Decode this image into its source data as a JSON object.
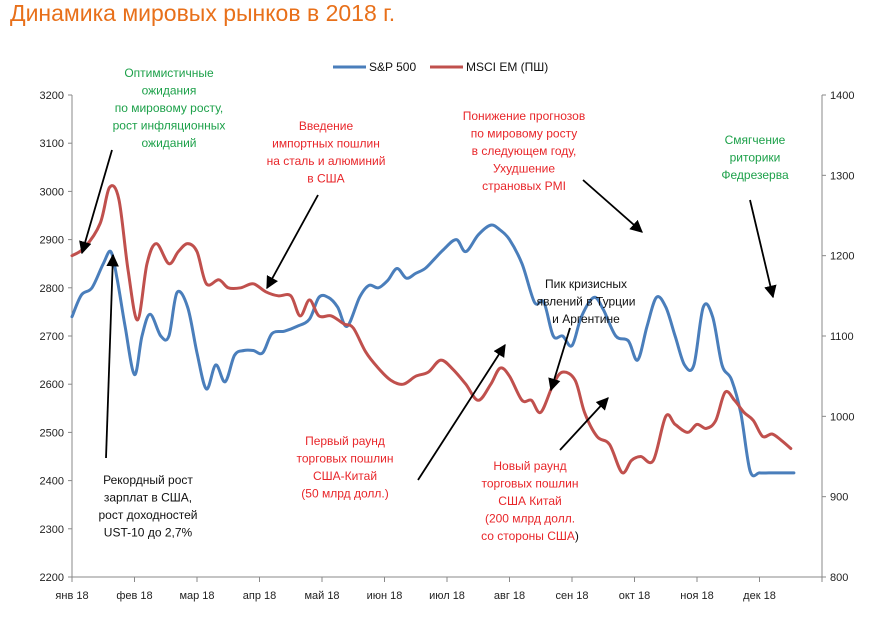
{
  "title": "Динамика мировых рынков в 2018 г.",
  "colors": {
    "title": "#E8701A",
    "sp500": "#4A7EBB",
    "msci": "#C0504D",
    "green": "#1DA14A",
    "red": "#E8262A",
    "black": "#111111",
    "axis": "#888888"
  },
  "chart_data": {
    "type": "line",
    "x_axis": {
      "categories": [
        "янв 18",
        "фев 18",
        "мар 18",
        "апр 18",
        "май 18",
        "июн 18",
        "июл 18",
        "авг 18",
        "сен 18",
        "окт 18",
        "ноя 18",
        "дек 18"
      ]
    },
    "y_left": {
      "min": 2200,
      "max": 3200,
      "step": 100,
      "ticks": [
        "2200",
        "2300",
        "2400",
        "2500",
        "2600",
        "2700",
        "2800",
        "2900",
        "3000",
        "3100",
        "3200"
      ]
    },
    "y_right": {
      "min": 800,
      "max": 1400,
      "step": 100,
      "ticks": [
        "800",
        "900",
        "1000",
        "1100",
        "1200",
        "1300",
        "1400"
      ]
    },
    "legend_position": "top-center",
    "series": [
      {
        "name": "S&P 500",
        "axis": "left",
        "color": "#4A7EBB",
        "x": [
          0.0,
          0.15,
          0.32,
          0.5,
          0.62,
          0.72,
          0.85,
          1.0,
          1.12,
          1.25,
          1.42,
          1.55,
          1.68,
          1.85,
          2.0,
          2.15,
          2.3,
          2.45,
          2.6,
          2.75,
          2.9,
          3.05,
          3.2,
          3.4,
          3.6,
          3.8,
          3.95,
          4.1,
          4.25,
          4.4,
          4.6,
          4.75,
          4.9,
          5.05,
          5.2,
          5.35,
          5.5,
          5.65,
          5.8,
          5.95,
          6.15,
          6.3,
          6.5,
          6.7,
          6.85,
          7.0,
          7.2,
          7.4,
          7.55,
          7.7,
          7.85,
          8.0,
          8.15,
          8.35,
          8.5,
          8.7,
          8.9,
          9.05,
          9.2,
          9.35,
          9.5,
          9.65,
          9.8,
          9.95,
          10.1,
          10.25,
          10.4,
          10.55,
          10.7,
          10.85,
          11.0,
          11.15,
          11.3,
          11.45,
          11.55
        ],
        "y": [
          2740,
          2785,
          2800,
          2850,
          2875,
          2820,
          2720,
          2620,
          2700,
          2745,
          2700,
          2700,
          2790,
          2760,
          2665,
          2590,
          2640,
          2605,
          2660,
          2670,
          2670,
          2665,
          2705,
          2710,
          2720,
          2735,
          2780,
          2780,
          2760,
          2720,
          2780,
          2805,
          2800,
          2815,
          2840,
          2820,
          2830,
          2840,
          2860,
          2880,
          2900,
          2875,
          2910,
          2930,
          2920,
          2900,
          2850,
          2770,
          2770,
          2700,
          2700,
          2680,
          2740,
          2780,
          2755,
          2700,
          2690,
          2650,
          2720,
          2780,
          2760,
          2700,
          2640,
          2640,
          2760,
          2740,
          2640,
          2610,
          2540,
          2420,
          2416,
          2416,
          2416,
          2416,
          2416
        ]
      },
      {
        "name": "MSCI EM (ПШ)",
        "axis": "right",
        "color": "#C0504D",
        "x": [
          0.0,
          0.2,
          0.45,
          0.6,
          0.75,
          0.9,
          1.05,
          1.2,
          1.35,
          1.55,
          1.7,
          1.85,
          2.0,
          2.15,
          2.35,
          2.5,
          2.7,
          2.9,
          3.1,
          3.3,
          3.5,
          3.65,
          3.8,
          3.95,
          4.15,
          4.35,
          4.5,
          4.7,
          4.9,
          5.1,
          5.3,
          5.5,
          5.7,
          5.9,
          6.1,
          6.3,
          6.5,
          6.7,
          6.85,
          7.0,
          7.2,
          7.35,
          7.5,
          7.7,
          7.85,
          8.05,
          8.2,
          8.4,
          8.6,
          8.8,
          8.95,
          9.1,
          9.3,
          9.5,
          9.65,
          9.85,
          10.0,
          10.15,
          10.3,
          10.45,
          10.6,
          10.75,
          10.9,
          11.05,
          11.2,
          11.35,
          11.5
        ],
        "y": [
          1200,
          1210,
          1240,
          1285,
          1270,
          1180,
          1120,
          1190,
          1215,
          1190,
          1205,
          1215,
          1205,
          1165,
          1170,
          1160,
          1160,
          1165,
          1155,
          1150,
          1150,
          1125,
          1145,
          1125,
          1125,
          1115,
          1110,
          1080,
          1060,
          1045,
          1040,
          1050,
          1055,
          1070,
          1058,
          1040,
          1020,
          1040,
          1060,
          1050,
          1020,
          1020,
          1005,
          1040,
          1055,
          1045,
          1005,
          975,
          965,
          930,
          945,
          950,
          945,
          1000,
          990,
          980,
          990,
          985,
          995,
          1030,
          1020,
          1005,
          995,
          975,
          978,
          970,
          960
        ]
      }
    ]
  },
  "annotations": [
    {
      "id": "optimistic",
      "lines": [
        "Оптимистичные",
        "ожидания",
        "по мировому росту,",
        "рост инфляционных",
        "ожиданий"
      ],
      "color": "green"
    },
    {
      "id": "tariffs-steel",
      "lines": [
        "Введение",
        "импортных пошлин",
        "на сталь и алюминий",
        "в США"
      ],
      "color": "red"
    },
    {
      "id": "forecasts",
      "lines": [
        "Понижение прогнозов",
        "по мировому росту",
        "в следующем году,",
        "Ухудшение",
        "страновых PMI"
      ],
      "color": "red"
    },
    {
      "id": "fed",
      "lines": [
        "Смягчение",
        "риторики",
        "Федрезерва"
      ],
      "color": "green"
    },
    {
      "id": "crisis",
      "lines": [
        "Пик кризисных",
        "явлений в Турции",
        "и Аргентине"
      ],
      "color": "black"
    },
    {
      "id": "wages",
      "lines": [
        "Рекордный рост",
        "зарплат в США,",
        "рост доходностей",
        "UST-10 до 2,7%"
      ],
      "color": "black"
    },
    {
      "id": "round1",
      "lines": [
        "Первый раунд",
        "торговых пошлин",
        "США-Китай",
        "(50 млрд долл.)"
      ],
      "color": "red"
    },
    {
      "id": "round2",
      "lines": [
        "Новый раунд",
        "торговых пошлин",
        "США Китай",
        "(200 млрд долл.",
        "со стороны США"
      ],
      "color": "red",
      "tail": ")"
    }
  ]
}
